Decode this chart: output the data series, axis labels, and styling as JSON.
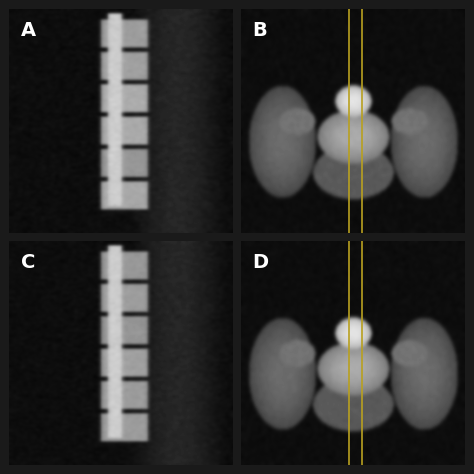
{
  "background_color": "#1a1a1a",
  "panel_background": "#000000",
  "label_color": "#ffffff",
  "label_fontsize": 14,
  "label_fontweight": "bold",
  "line_color": "#b8a020",
  "line_width": 1.2,
  "labels": [
    "A",
    "B",
    "C",
    "D"
  ],
  "grid_rows": 2,
  "grid_cols": 2,
  "figsize": [
    4.74,
    4.74
  ],
  "dpi": 100
}
